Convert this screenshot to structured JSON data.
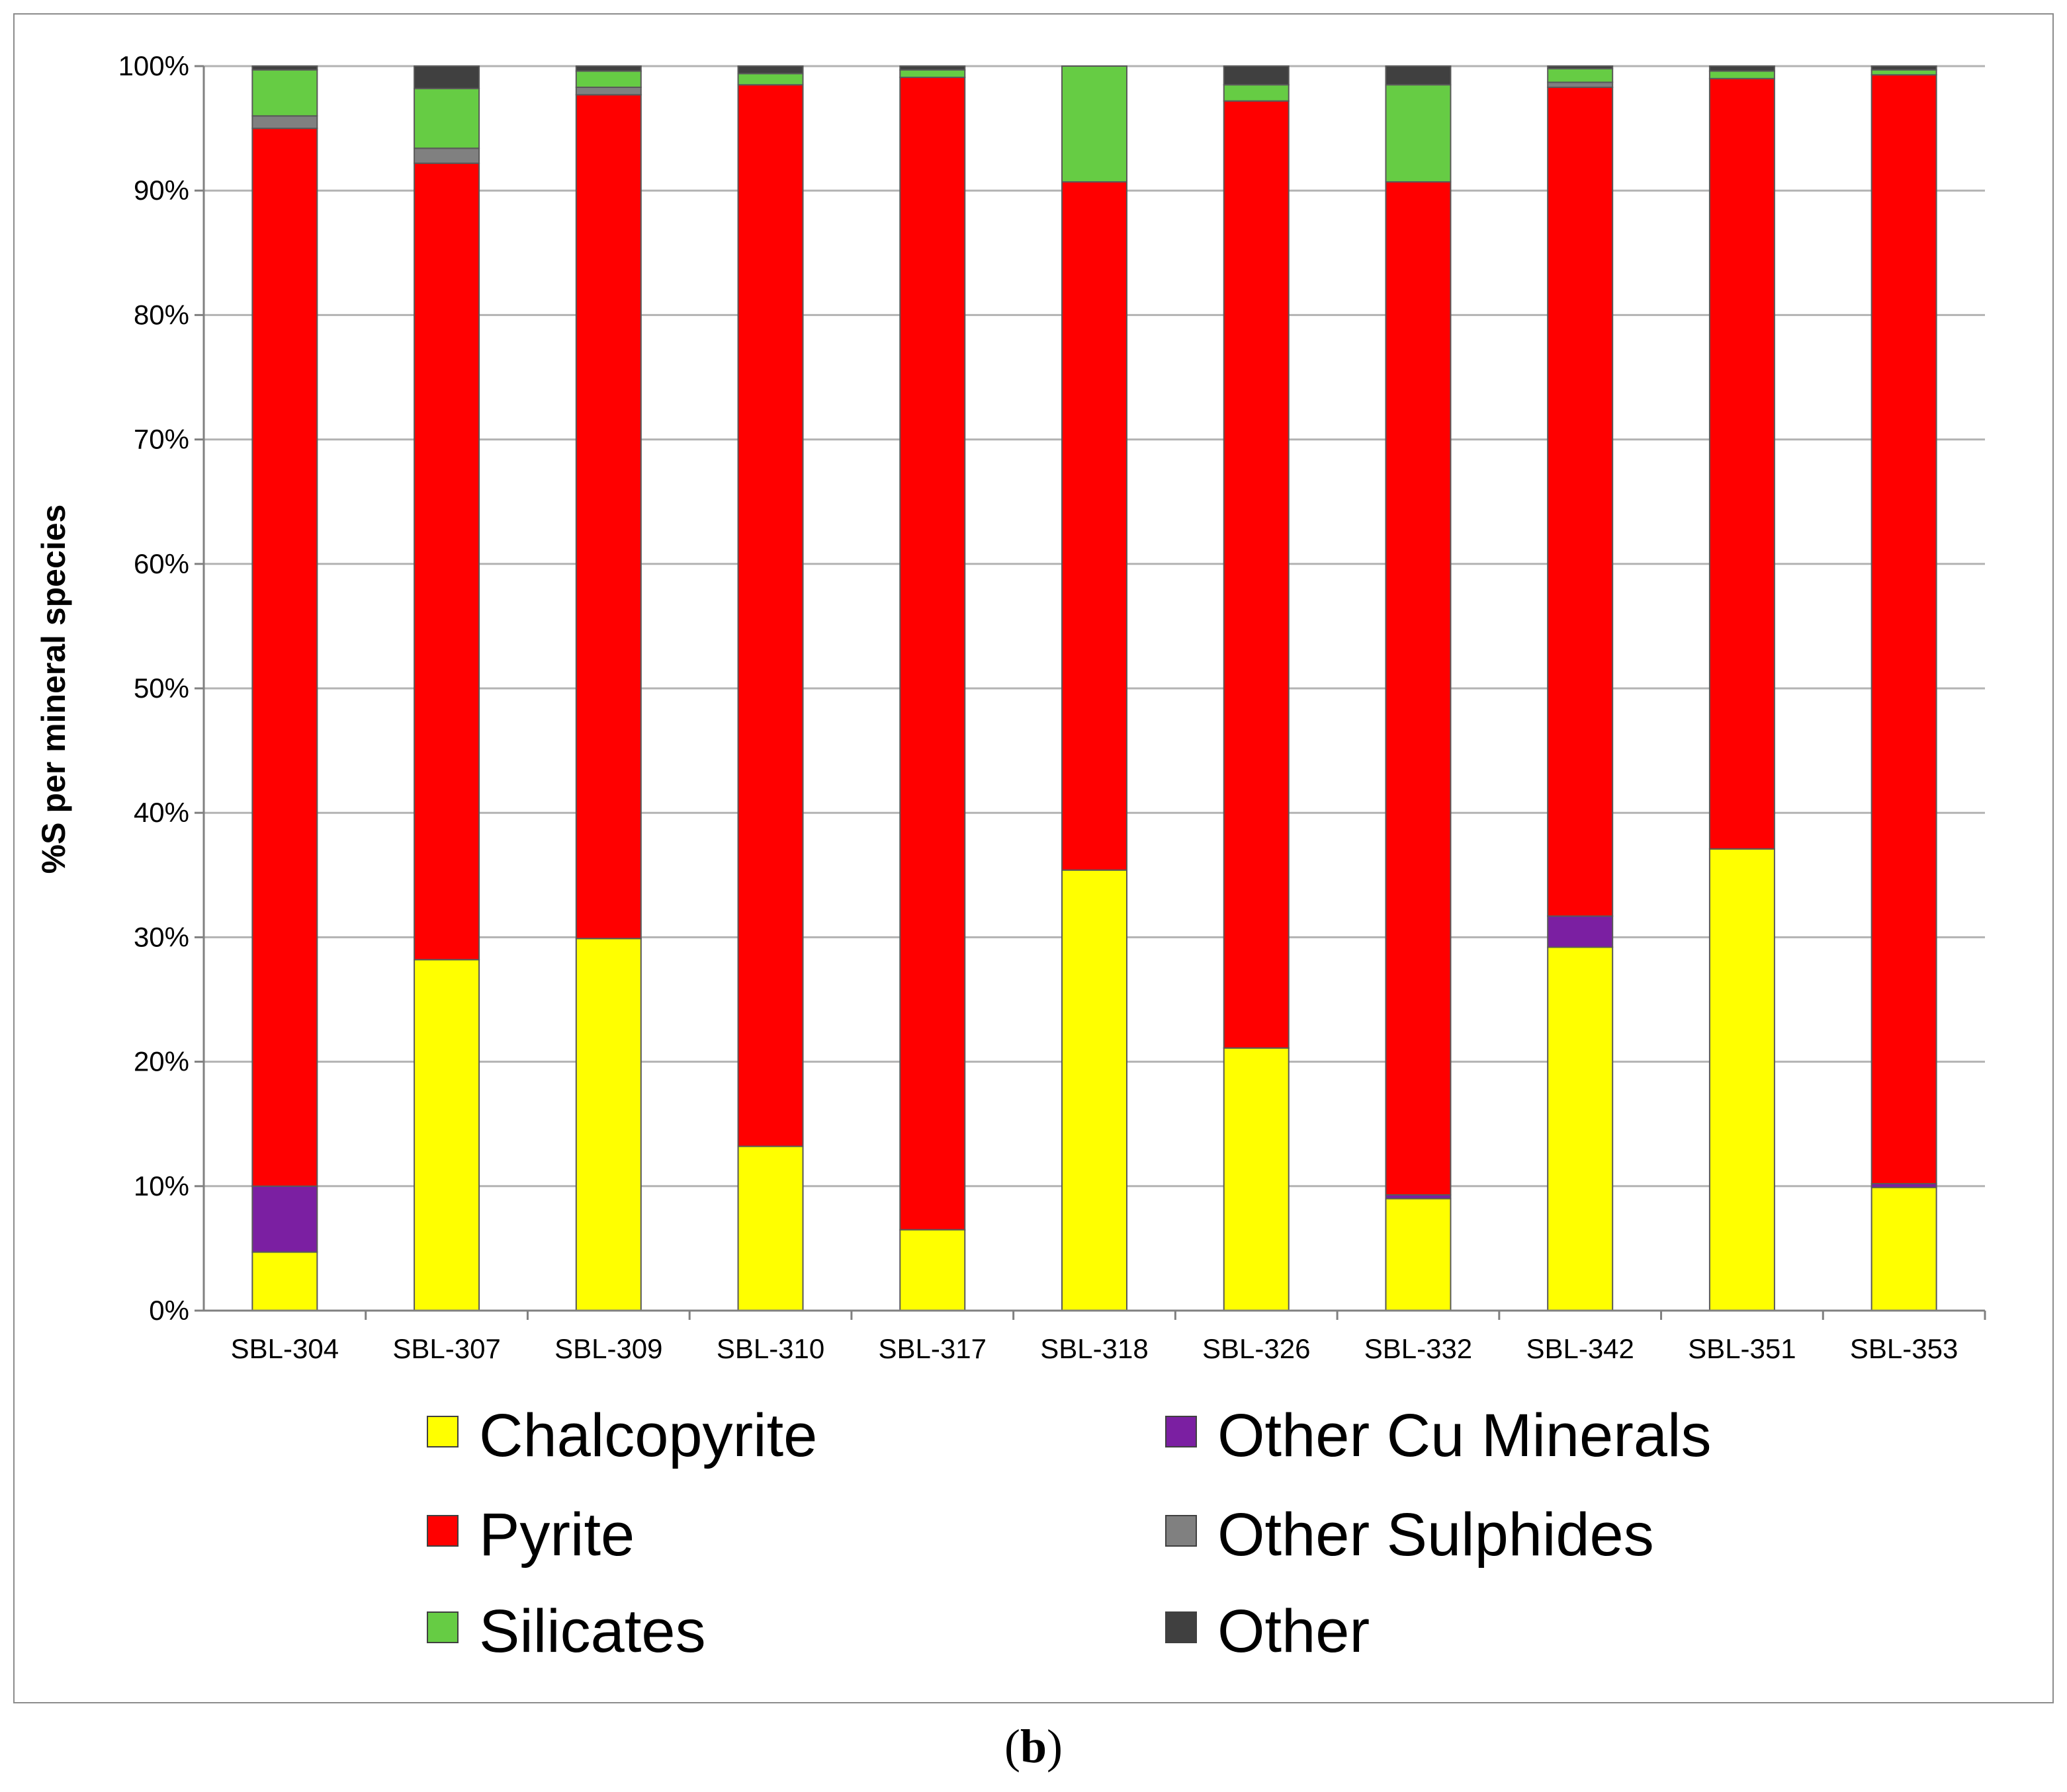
{
  "chart_data": {
    "type": "bar",
    "stacked": true,
    "title": "",
    "xlabel": "",
    "ylabel": "%S per mineral species",
    "ylim": [
      0,
      100
    ],
    "yticks": [
      "0%",
      "10%",
      "20%",
      "30%",
      "40%",
      "50%",
      "60%",
      "70%",
      "80%",
      "90%",
      "100%"
    ],
    "grid": true,
    "legend_position": "bottom",
    "categories": [
      "SBL-304",
      "SBL-307",
      "SBL-309",
      "SBL-310",
      "SBL-317",
      "SBL-318",
      "SBL-326",
      "SBL-332",
      "SBL-342",
      "SBL-351",
      "SBL-353"
    ],
    "series": [
      {
        "name": "Chalcopyrite",
        "color": "#ffff00",
        "values": [
          4.7,
          28.2,
          29.9,
          13.2,
          6.5,
          35.4,
          21.1,
          9.0,
          29.2,
          37.1,
          9.9
        ]
      },
      {
        "name": "Other Cu Minerals",
        "color": "#7b1fa2",
        "values": [
          5.3,
          0.0,
          0.0,
          0.0,
          0.0,
          0.0,
          0.0,
          0.3,
          2.5,
          0.0,
          0.3
        ]
      },
      {
        "name": "Pyrite",
        "color": "#ff0000",
        "values": [
          85.0,
          64.0,
          67.8,
          85.3,
          92.6,
          55.3,
          76.1,
          81.4,
          66.6,
          61.9,
          89.1
        ]
      },
      {
        "name": "Other Sulphides",
        "color": "#808080",
        "values": [
          1.0,
          1.2,
          0.6,
          0.0,
          0.0,
          0.0,
          0.0,
          0.0,
          0.4,
          0.0,
          0.0
        ]
      },
      {
        "name": "Silicates",
        "color": "#66cc44",
        "values": [
          3.7,
          4.8,
          1.3,
          0.9,
          0.6,
          9.3,
          1.3,
          7.8,
          1.1,
          0.6,
          0.4
        ]
      },
      {
        "name": "Other",
        "color": "#404040",
        "values": [
          0.3,
          1.8,
          0.4,
          0.6,
          0.3,
          0.0,
          1.5,
          1.5,
          0.2,
          0.4,
          0.3
        ]
      }
    ],
    "legend_columns": [
      [
        "Chalcopyrite",
        "Pyrite",
        "Silicates"
      ],
      [
        "Other Cu Minerals",
        "Other Sulphides",
        "Other"
      ]
    ]
  },
  "panel_label": {
    "open": "(",
    "letter": "b",
    "close": ")"
  }
}
